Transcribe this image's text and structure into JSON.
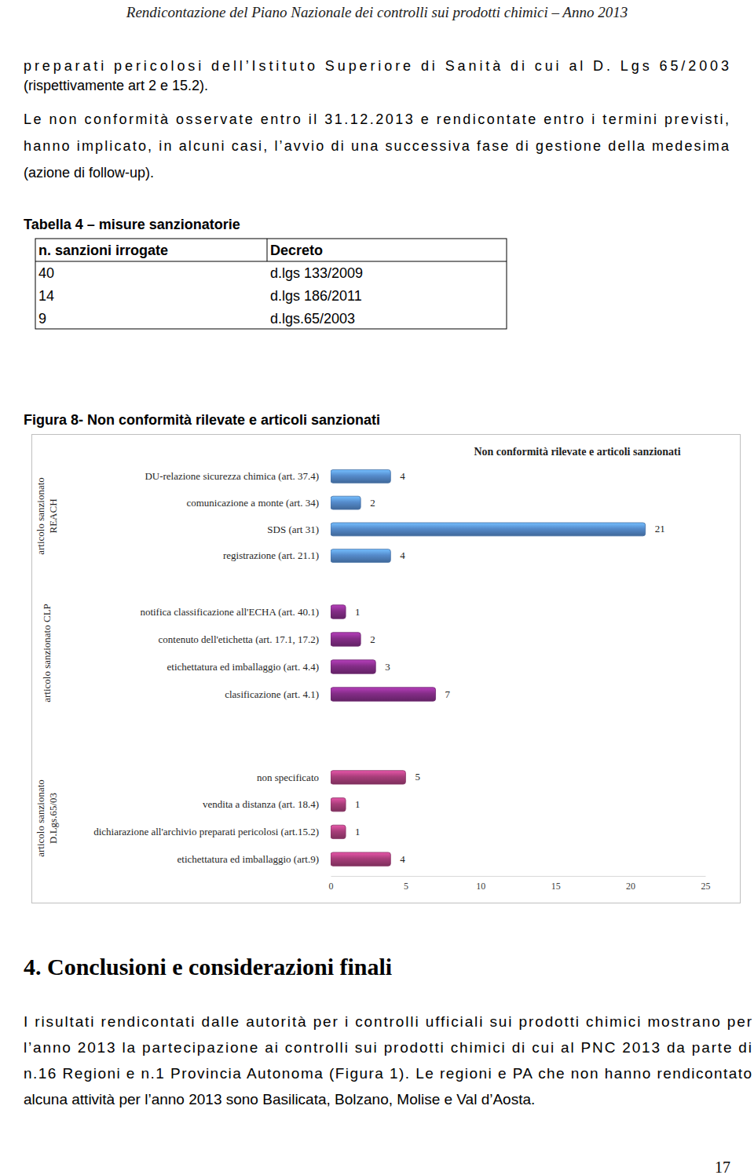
{
  "header": {
    "title": "Rendicontazione del Piano Nazionale dei controlli sui prodotti chimici – Anno 2013"
  },
  "intro": {
    "paragraphs": [
      [
        "preparati pericolosi dell’Istituto Superiore di Sanità di cui al D. Lgs 65/2003",
        "(rispettivamente art 2 e 15.2)."
      ],
      [
        "Le non conformità osservate entro il 31.12.2013 e rendicontate entro i termini previsti,",
        "hanno implicato, in alcuni casi, l’avvio di una successiva fase di gestione della medesima",
        "(azione di follow-up)."
      ]
    ]
  },
  "table": {
    "caption": "Tabella 4 – misure sanzionatorie",
    "columns": [
      "n. sanzioni irrogate",
      "Decreto"
    ],
    "rows": [
      [
        40,
        "d.lgs 133/2009"
      ],
      [
        14,
        "d.lgs 186/2011"
      ],
      [
        9,
        "d.lgs.65/2003"
      ]
    ]
  },
  "figure": {
    "caption": "Figura 8- Non conformità rilevate e articoli sanzionati"
  },
  "chart_data": {
    "type": "bar",
    "orientation": "horizontal",
    "title": "Non conformità rilevate e articoli sanzionati",
    "data_labels": true,
    "xlim": [
      0,
      25
    ],
    "xticks": [
      0,
      5,
      10,
      15,
      20,
      25
    ],
    "groups": [
      {
        "label": [
          "articolo sanzionato",
          "REACH"
        ],
        "color": "#4f81bd",
        "categories": [
          "DU-relazione sicurezza chimica (art. 37.4)",
          "comunicazione a monte (art. 34)",
          "SDS (art 31)",
          "registrazione (art. 21.1)"
        ],
        "values": [
          4,
          2,
          21,
          4
        ]
      },
      {
        "label": [
          "articolo sanzionato CLP"
        ],
        "color": "#7b2a7e",
        "categories": [
          "notifica classificazione all'ECHA (art. 40.1)",
          "contenuto dell'etichetta (art. 17.1, 17.2)",
          "etichettatura ed imballaggio (art. 4.4)",
          "clasificazione (art. 4.1)"
        ],
        "values": [
          1,
          2,
          3,
          7
        ]
      },
      {
        "label": [
          "articolo sanzionato",
          "D.Lgs.65/03"
        ],
        "color": "#9c3a72",
        "categories": [
          "non specificato",
          "vendita a distanza (art. 18.4)",
          "dichiarazione all'archivio preparati pericolosi (art.15.2)",
          "etichettatura ed imballaggio (art.9)"
        ],
        "values": [
          5,
          1,
          1,
          4
        ]
      }
    ]
  },
  "section": {
    "heading": "4. Conclusioni e considerazioni finali",
    "paragraphs": [
      [
        "I risultati rendicontati dalle autorità per i controlli ufficiali sui prodotti chimici mostrano per",
        "l’anno 2013 la partecipazione ai controlli sui prodotti chimici di cui al PNC 2013 da parte di",
        "n.16 Regioni e n.1 Provincia Autonoma (Figura 1). Le regioni e PA che non hanno rendicontato",
        "alcuna attività per l’anno 2013 sono Basilicata, Bolzano, Molise e Val d’Aosta."
      ]
    ]
  },
  "footer": {
    "page": 17
  }
}
